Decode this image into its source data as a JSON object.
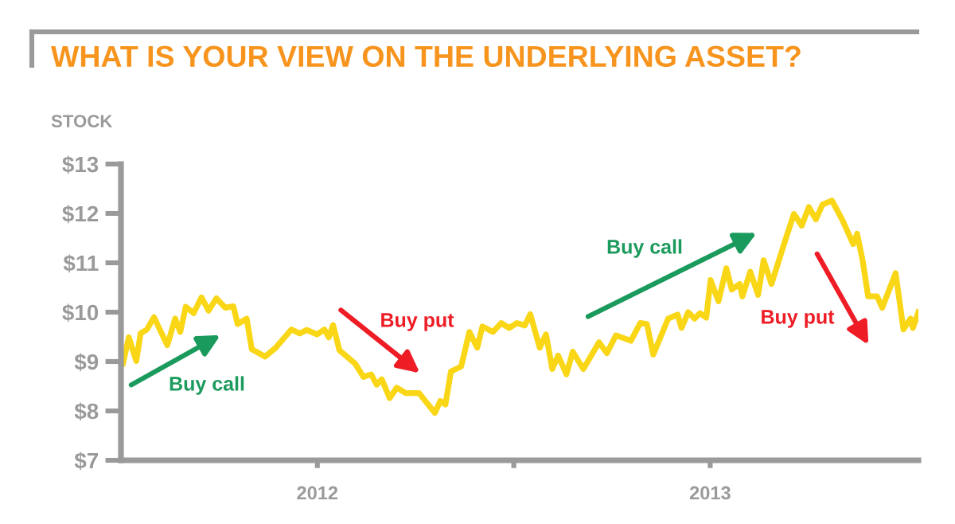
{
  "chart_data": {
    "type": "line",
    "title": "WHAT IS YOUR VIEW ON THE UNDERLYING ASSET?",
    "ylabel": "STOCK",
    "x": [
      2012.005,
      2012.02,
      2012.039,
      2012.05,
      2012.066,
      2012.084,
      2012.118,
      2012.138,
      2012.151,
      2012.165,
      2012.185,
      2012.205,
      2012.223,
      2012.243,
      2012.266,
      2012.286,
      2012.297,
      2012.32,
      2012.333,
      2012.367,
      2012.394,
      2012.434,
      2012.455,
      2012.473,
      2012.499,
      2012.518,
      2012.529,
      2012.54,
      2012.556,
      2012.596,
      2012.617,
      2012.637,
      2012.651,
      2012.664,
      2012.684,
      2012.702,
      2012.725,
      2012.759,
      2012.799,
      2012.813,
      2012.826,
      2012.84,
      2012.866,
      2012.887,
      2012.907,
      2012.92,
      2012.947,
      2012.968,
      2012.988,
      2013.008,
      2013.028,
      2013.042,
      2013.066,
      2013.082,
      2013.098,
      2013.113,
      2013.134,
      2013.15,
      2013.177,
      2013.217,
      2013.237,
      2013.26,
      2013.298,
      2013.322,
      2013.339,
      2013.355,
      2013.393,
      2013.417,
      2013.427,
      2013.444,
      2013.46,
      2013.474,
      2013.49,
      2013.501,
      2013.521,
      2013.541,
      2013.555,
      2013.575,
      2013.582,
      2013.602,
      2013.622,
      2013.636,
      2013.656,
      2013.69,
      2013.713,
      2013.733,
      2013.751,
      2013.769,
      2013.786,
      2013.81,
      2013.837,
      2013.864,
      2013.874,
      2013.888,
      2013.902,
      2013.925,
      2013.938,
      2013.972,
      2013.992,
      2014.01,
      2014.016,
      2014.03
    ],
    "series": [
      {
        "color": "#f9d616",
        "values": [
          8.96,
          9.49,
          9.01,
          9.57,
          9.65,
          9.9,
          9.33,
          9.87,
          9.6,
          10.11,
          9.98,
          10.3,
          10.03,
          10.28,
          10.09,
          10.12,
          9.76,
          9.87,
          9.25,
          9.1,
          9.28,
          9.65,
          9.57,
          9.64,
          9.55,
          9.65,
          9.49,
          9.74,
          9.23,
          8.96,
          8.69,
          8.74,
          8.53,
          8.64,
          8.26,
          8.47,
          8.36,
          8.36,
          7.96,
          8.2,
          8.13,
          8.8,
          8.9,
          9.6,
          9.28,
          9.71,
          9.6,
          9.78,
          9.68,
          9.78,
          9.73,
          9.96,
          9.28,
          9.55,
          8.85,
          9.12,
          8.74,
          9.2,
          8.85,
          9.39,
          9.17,
          9.53,
          9.42,
          9.78,
          9.76,
          9.14,
          9.87,
          9.95,
          9.68,
          10.0,
          9.87,
          9.98,
          9.89,
          10.65,
          10.22,
          10.89,
          10.46,
          10.57,
          10.32,
          10.82,
          10.35,
          11.05,
          10.57,
          11.43,
          11.99,
          11.75,
          12.13,
          11.88,
          12.18,
          12.26,
          11.86,
          11.38,
          11.59,
          11.05,
          10.32,
          10.32,
          10.09,
          10.79,
          9.65,
          9.87,
          9.68,
          10.0
        ]
      }
    ],
    "xlim": [
      2012,
      2014.03
    ],
    "xticks": [
      {
        "value": 2012.5,
        "label": "2012"
      },
      {
        "value": 2013,
        "label": null
      },
      {
        "value": 2013.5,
        "label": "2013"
      }
    ],
    "ylim": [
      7,
      13
    ],
    "yticks": [
      {
        "value": 7,
        "label": "$7"
      },
      {
        "value": 8,
        "label": "$8"
      },
      {
        "value": 9,
        "label": "$9"
      },
      {
        "value": 10,
        "label": "$10"
      },
      {
        "value": 11,
        "label": "$11"
      },
      {
        "value": 12,
        "label": "$12"
      },
      {
        "value": 13,
        "label": "$13"
      }
    ],
    "annotations": [
      "Buy call",
      "Buy put",
      "Buy call",
      "Buy put"
    ],
    "grid": false,
    "legend": false,
    "marker": "none",
    "line_style": "solid"
  }
}
